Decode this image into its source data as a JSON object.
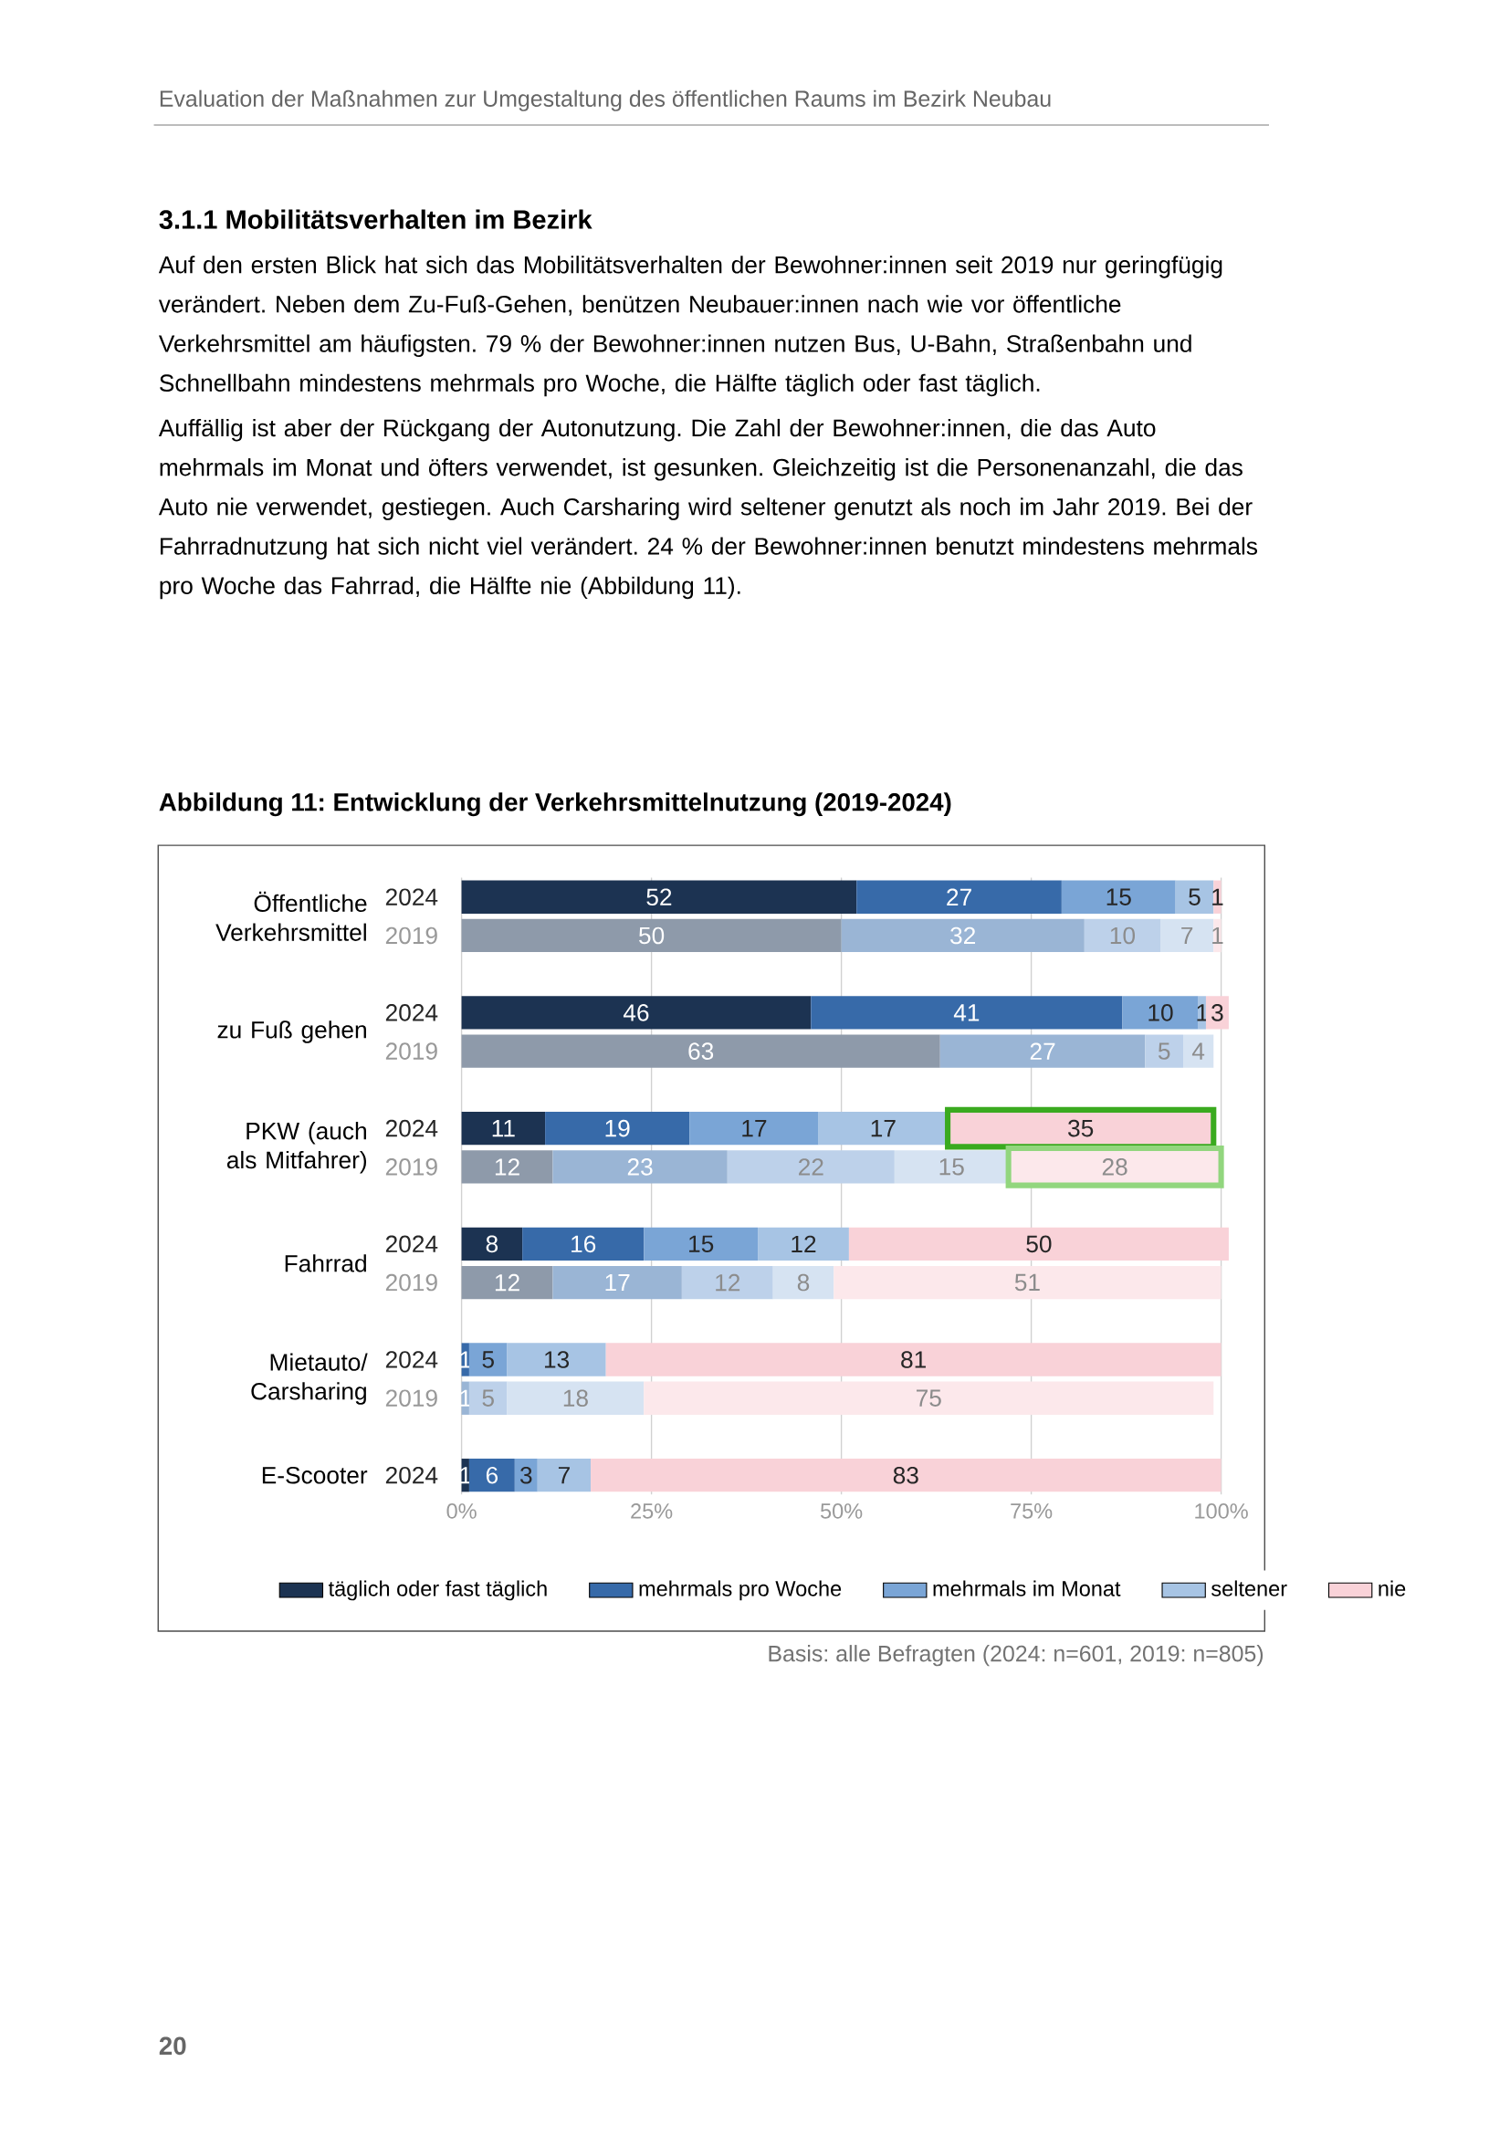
{
  "chart_data": {
    "type": "bar",
    "orientation": "horizontal",
    "stacked": true,
    "title": "Abbildung 11: Entwicklung der Verkehrsmittelnutzung (2019-2024)",
    "categories": [
      "2024",
      "2019",
      "2024",
      "2019",
      "2024",
      "2019",
      "2024",
      "2019",
      "2024",
      "2019",
      "2024"
    ],
    "series": [
      {
        "name": "täglich oder fast täglich",
        "color": "#1c3352",
        "colors": [
          "#1c3352",
          "#8e9aaa",
          "#1c3352",
          "#8e9aaa",
          "#1c3352",
          "#8e9aaa",
          "#1c3352",
          "#8e9aaa",
          "#1c3352",
          "#8e9aaa",
          "#1c3352"
        ],
        "values": [
          52,
          50,
          46,
          63,
          11,
          12,
          8,
          12,
          null,
          null,
          1
        ]
      },
      {
        "name": "mehrmals pro Woche",
        "color": "#376aa9",
        "colors": [
          "#376aa9",
          "#9ab5d5",
          "#376aa9",
          "#9ab5d5",
          "#376aa9",
          "#9ab5d5",
          "#376aa9",
          "#9ab5d5",
          "#376aa9",
          "#9ab5d5",
          "#376aa9"
        ],
        "values": [
          27,
          32,
          41,
          27,
          19,
          23,
          16,
          17,
          1,
          1,
          6
        ]
      },
      {
        "name": "mehrmals im Monat",
        "color": "#7aa5d6",
        "colors": [
          "#7aa5d6",
          "#bdd1ea",
          "#7aa5d6",
          "#bdd1ea",
          "#7aa5d6",
          "#bdd1ea",
          "#7aa5d6",
          "#bdd1ea",
          "#7aa5d6",
          "#bdd1ea",
          "#7aa5d6"
        ],
        "values": [
          15,
          10,
          10,
          5,
          17,
          22,
          15,
          12,
          5,
          5,
          3
        ]
      },
      {
        "name": "seltener",
        "color": "#a7c4e4",
        "colors": [
          "#a7c4e4",
          "#d6e3f2",
          "#a7c4e4",
          "#d6e3f2",
          "#a7c4e4",
          "#d6e3f2",
          "#a7c4e4",
          "#d6e3f2",
          "#a7c4e4",
          "#d6e3f2",
          "#a7c4e4"
        ],
        "values": [
          5,
          7,
          1,
          4,
          17,
          15,
          12,
          8,
          13,
          18,
          7
        ]
      },
      {
        "name": "nie",
        "color": "#f9d2d8",
        "colors": [
          "#f9d2d8",
          "#fce8eb",
          "#f9d2d8",
          "#fce8eb",
          "#f9d2d8",
          "#fce8eb",
          "#f9d2d8",
          "#fce8eb",
          "#f9d2d8",
          "#fce8eb",
          "#f9d2d8"
        ],
        "values": [
          1,
          1,
          3,
          null,
          35,
          28,
          50,
          51,
          81,
          75,
          83
        ]
      }
    ],
    "xlim": [
      0,
      101
    ],
    "xticks": [
      {
        "value": 0,
        "label": "0%"
      },
      {
        "value": 25,
        "label": "25%"
      },
      {
        "value": 50,
        "label": "50%"
      },
      {
        "value": 75,
        "label": "75%"
      },
      {
        "value": 100,
        "label": "100%"
      }
    ],
    "grid": "x",
    "legend": "bottom",
    "data_labels": true,
    "annotations": [
      "Evaluation der Maßnahmen zur Umgestaltung des öffentlichen Raums im Bezirk Neubau",
      "3.1.1 Mobilitätsverhalten im Bezirk",
      "Auf den ersten Blick hat sich das Mobilitätsverhalten der Bewohner:innen seit 2019 nur geringfügig verändert. Neben dem Zu-Fuß-Gehen, benützen Neubauer:innen nach wie vor öffentliche Verkehrsmittel am häufigsten. 79 % der Bewohner:innen nutzen Bus, U-Bahn, Straßenbahn und Schnellbahn mindestens mehrmals pro Woche, die Hälfte täglich oder fast täglich.",
      "Auffällig ist aber der Rückgang der Autonutzung. Die Zahl der Bewohner:innen, die das Auto mehrmals im Monat und öfters verwendet, ist gesunken. Gleichzeitig ist die Personenanzahl, die das Auto nie verwendet, gestiegen. Auch Carsharing wird seltener genutzt als noch im Jahr 2019. Bei der Fahrradnutzung hat sich nicht viel verändert. 24 % der Bewohner:innen benutzt mindestens mehrmals pro Woche das Fahrrad, die Hälfte nie (Abbildung 11).",
      "Öffentliche Verkehrsmittel",
      "zu Fuß gehen",
      "PKW (auch als Mitfahrer)",
      "Fahrrad",
      "Mietauto/ Carsharing",
      "E-Scooter",
      "Basis: alle Befragten (2024: n=601, 2019: n=805)",
      "20"
    ]
  }
}
